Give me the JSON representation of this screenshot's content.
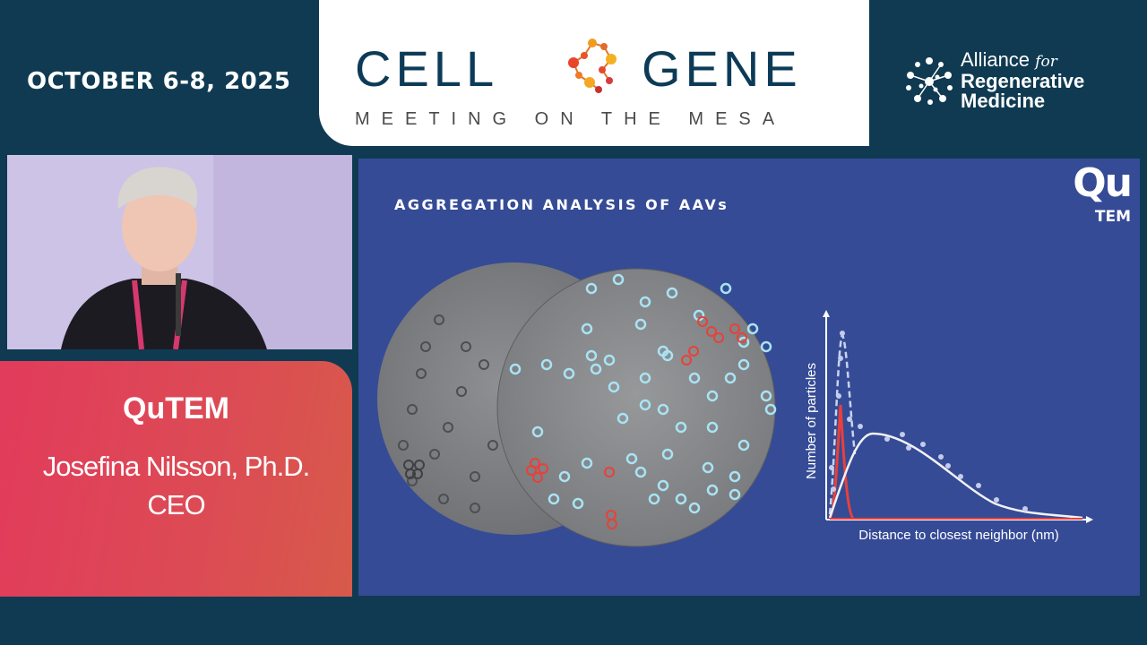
{
  "header": {
    "date": "OCTOBER 6-8, 2025",
    "logo": {
      "word_left": "CELL",
      "word_right": "GENE",
      "subtitle": "MEETING ON THE MESA"
    },
    "alliance": {
      "line1": "Alliance",
      "line1_suffix": "for",
      "line2": "Regenerative",
      "line3": "Medicine"
    }
  },
  "speaker": {
    "company": "QuTEM",
    "name": "Josefina Nilsson, Ph.D.",
    "title": "CEO"
  },
  "slide": {
    "title": "AGGREGATION ANALYSIS OF AAVs",
    "logo_top": "Qu",
    "logo_bottom": "TEM",
    "graph": {
      "ylabel": "Number of particles",
      "xlabel": "Distance to closest neighbor (nm)"
    }
  },
  "colors": {
    "background": "#0f3a52",
    "slide_bg": "#354b96",
    "card_red": "#e23b5c",
    "particle_ring": "#a9e3f5",
    "aggregate_ring": "#e8413a"
  }
}
